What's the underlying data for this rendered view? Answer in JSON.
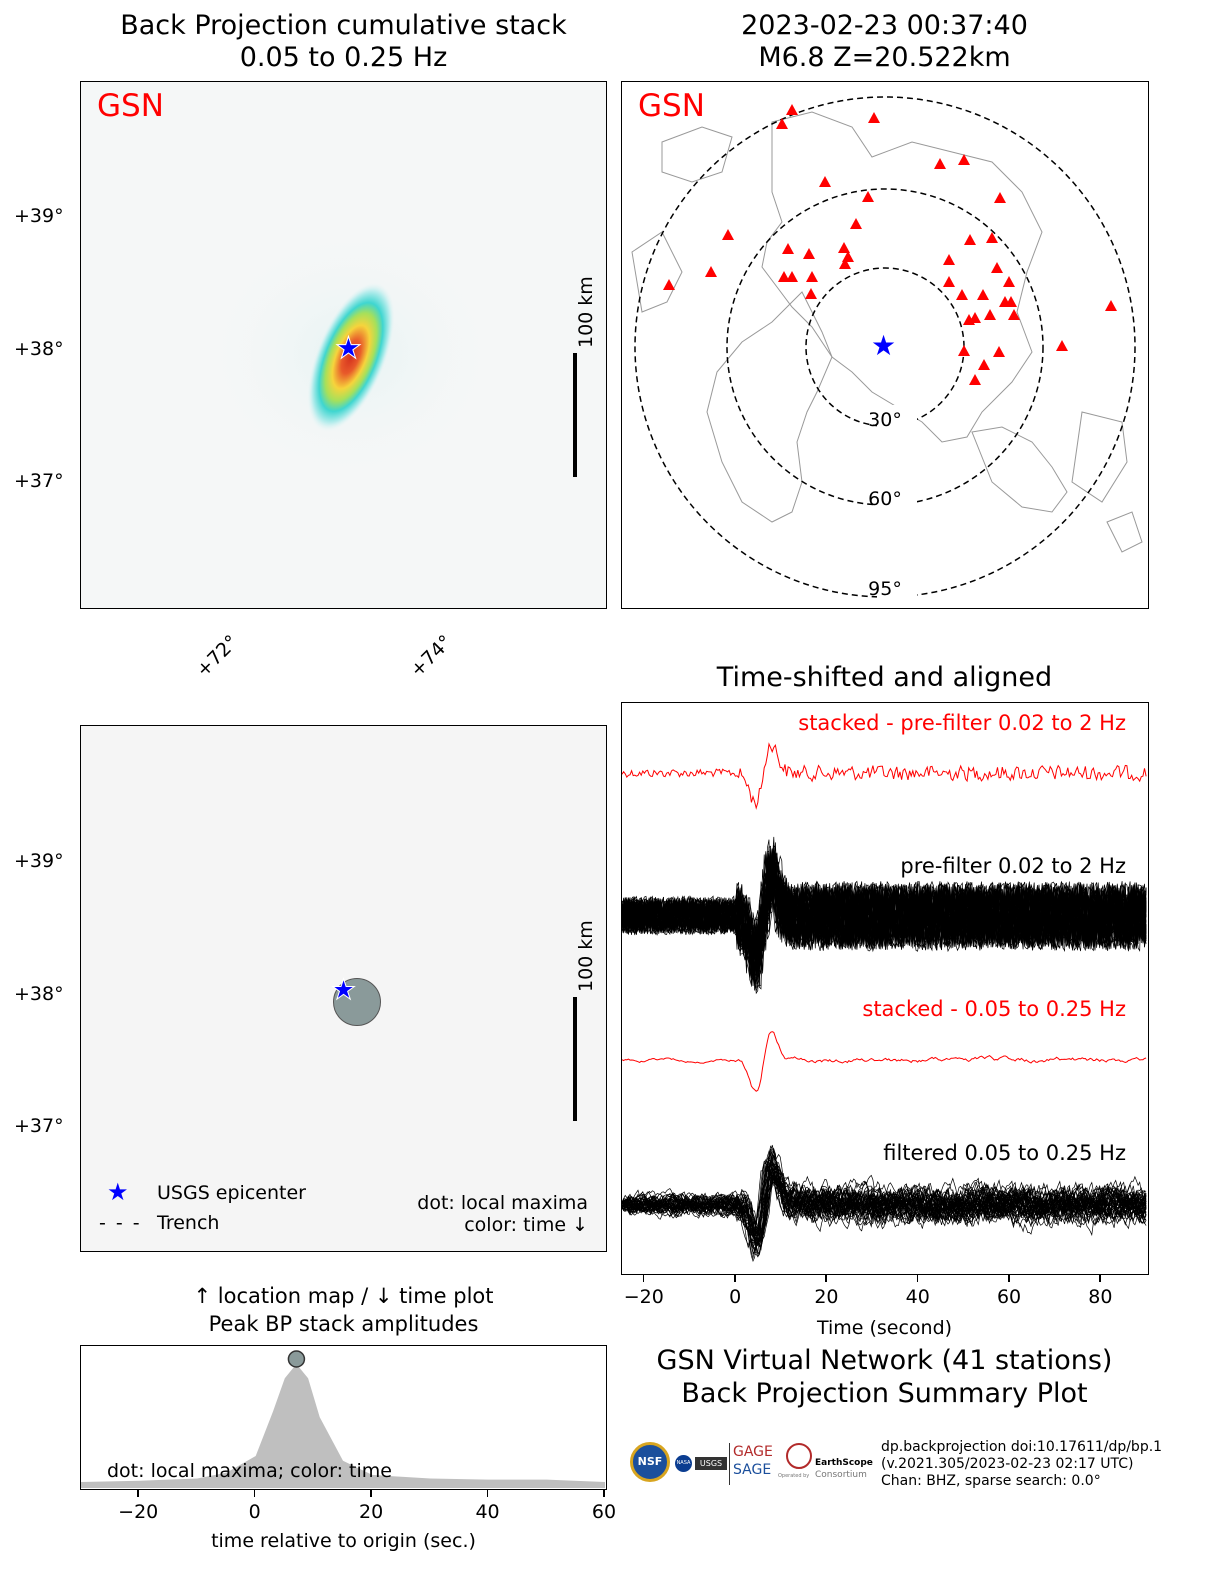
{
  "top_left": {
    "title_line1": "Back Projection cumulative stack",
    "title_line2": "0.05 to 0.25 Hz",
    "network_label": "GSN",
    "lat_ticks": [
      "+39°",
      "+38°",
      "+37°"
    ],
    "lon_ticks": [
      "+72°",
      "+74°"
    ],
    "scale_label": "100 km"
  },
  "top_right": {
    "title_line1": "2023-02-23 00:37:40",
    "title_line2": "M6.8 Z=20.522km",
    "network_label": "GSN",
    "ring_labels": [
      "30°",
      "60°",
      "95°"
    ],
    "station_count": 41
  },
  "mid_left": {
    "lat_ticks": [
      "+39°",
      "+38°",
      "+37°"
    ],
    "scale_label": "100 km",
    "legend_epicenter": "USGS epicenter",
    "legend_trench": "Trench",
    "note_line1": "dot: local maxima",
    "note_line2": "color: time ↓"
  },
  "bottom_left": {
    "title_line1": "↑ location map / ↓ time plot",
    "title_line2": "Peak BP stack amplitudes",
    "note": "dot: local maxima; color: time",
    "xlabel": "time relative to origin (sec.)"
  },
  "waveforms": {
    "title": "Time-shifted and aligned",
    "label_stacked_pre": "stacked - pre-filter 0.02 to 2 Hz",
    "label_pre": "pre-filter 0.02 to 2 Hz",
    "label_stacked_filt": "stacked - 0.05 to 0.25 Hz",
    "label_filt": "filtered 0.05 to 0.25 Hz",
    "xlabel": "Time (second)"
  },
  "summary": {
    "line1": "GSN Virtual Network (41 stations)",
    "line2": "Back Projection Summary Plot"
  },
  "credits": {
    "line1": "dp.backprojection doi:10.17611/dp/bp.1",
    "line2": "(v.2021.305/2023-02-23 02:17 UTC)",
    "line3": "Chan: BHZ, sparse search: 0.0°",
    "logo_nsf": "NSF",
    "logo_nasa": "NASA",
    "logo_usgs": "USGS",
    "logo_gage": "GAGE",
    "logo_sage": "SAGE",
    "logo_earthscope": "EarthScope",
    "logo_consortium": "Consortium",
    "logo_operated": "Operated by"
  },
  "colors": {
    "epicenter": "#0000ff",
    "station": "#ff0000",
    "stacked_trace": "#ff0000",
    "trace": "#000000",
    "panel_bg": "#f5f5f5",
    "peak_dot": "#8a9a9a",
    "amplitude_fill": "#bfbfbf"
  },
  "chart_data": [
    {
      "type": "heatmap",
      "title": "Back Projection cumulative stack\n0.05 to 0.25 Hz",
      "xlabel": "",
      "ylabel": "",
      "x_ticks": [
        "+72°",
        "+74°"
      ],
      "y_ticks": [
        "+39°",
        "+38°",
        "+37°"
      ],
      "epicenter": {
        "lat": 38.0,
        "lon": 72.9
      },
      "peak": {
        "lat": 37.9,
        "lon": 73.0
      },
      "colormap": "white-cyan-yellow-red"
    },
    {
      "type": "scatter",
      "title": "2023-02-23 00:37:40\nM6.8 Z=20.522km",
      "distance_rings_deg": [
        30,
        60,
        95
      ],
      "epicenter": {
        "distance_deg": 0
      },
      "stations": 41
    },
    {
      "type": "scatter",
      "y_ticks": [
        "+39°",
        "+38°",
        "+37°"
      ],
      "epicenter": {
        "lat": 38.0,
        "lon": 72.9
      },
      "local_maxima": [
        {
          "lat": 37.95,
          "lon": 73.0
        }
      ]
    },
    {
      "type": "area",
      "title": "↑ location map / ↓ time plot\nPeak BP stack amplitudes",
      "xlabel": "time relative to origin (sec.)",
      "ylabel": "",
      "xlim": [
        -30,
        60
      ],
      "x_ticks": [
        -20,
        0,
        20,
        40,
        60
      ],
      "x": [
        -30,
        -20,
        -10,
        -5,
        0,
        3,
        5,
        7,
        9,
        11,
        15,
        20,
        30,
        40,
        50,
        60
      ],
      "values": [
        0,
        0.01,
        0.03,
        0.08,
        0.22,
        0.6,
        0.88,
        1.0,
        0.88,
        0.55,
        0.18,
        0.06,
        0.03,
        0.02,
        0.02,
        0
      ],
      "peak": {
        "x": 7,
        "y": 1.0
      }
    },
    {
      "type": "line",
      "title": "Time-shifted and aligned",
      "xlabel": "Time (second)",
      "ylabel": "",
      "xlim": [
        -25,
        90
      ],
      "x_ticks": [
        -20,
        0,
        20,
        40,
        60,
        80
      ],
      "series": [
        {
          "name": "stacked - pre-filter 0.02 to 2 Hz"
        },
        {
          "name": "pre-filter 0.02 to 2 Hz"
        },
        {
          "name": "stacked - 0.05 to 0.25 Hz"
        },
        {
          "name": "filtered 0.05 to 0.25 Hz"
        }
      ],
      "onset_time": 0,
      "peak_time": 6
    }
  ]
}
